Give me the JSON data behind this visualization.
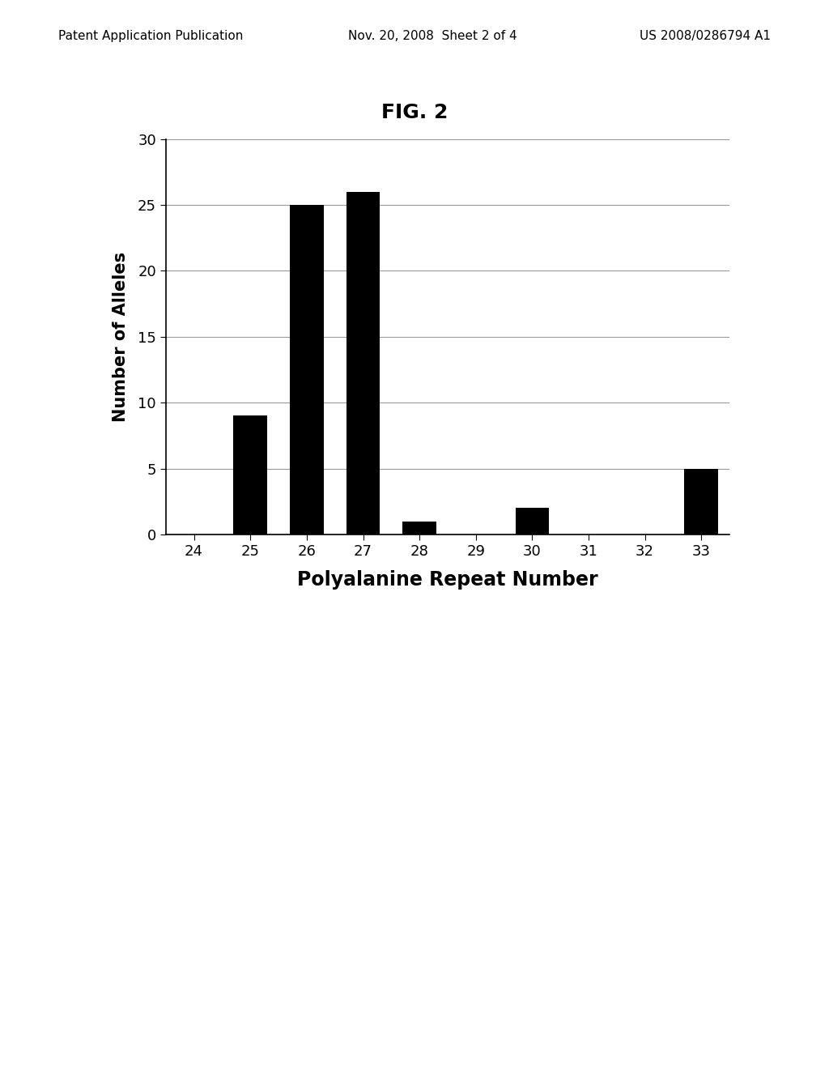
{
  "title": "FIG. 2",
  "xlabel": "Polyalanine Repeat Number",
  "ylabel": "Number of Alleles",
  "categories": [
    24,
    25,
    26,
    27,
    28,
    29,
    30,
    31,
    32,
    33
  ],
  "values": [
    0,
    9,
    25,
    26,
    1,
    0,
    2,
    0,
    0,
    5
  ],
  "bar_color": "#000000",
  "ylim": [
    0,
    30
  ],
  "yticks": [
    0,
    5,
    10,
    15,
    20,
    25,
    30
  ],
  "xlim": [
    23.5,
    33.5
  ],
  "bar_width": 0.6,
  "background_color": "#ffffff",
  "title_fontsize": 18,
  "title_fontweight": "bold",
  "axis_fontsize": 15,
  "tick_fontsize": 13,
  "xlabel_fontsize": 17,
  "xlabel_fontweight": "bold",
  "header_left": "Patent Application Publication",
  "header_center": "Nov. 20, 2008  Sheet 2 of 4",
  "header_right": "US 2008/0286794 A1",
  "header_fontsize": 11
}
